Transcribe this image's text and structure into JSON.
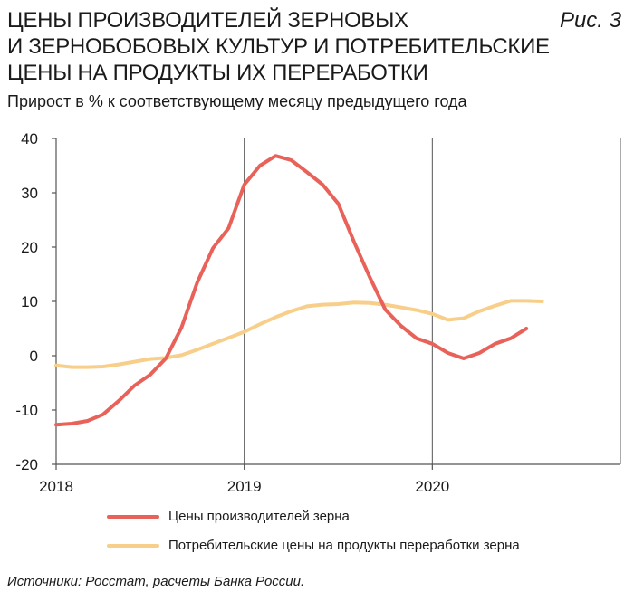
{
  "header": {
    "title_lines": [
      "ЦЕНЫ ПРОИЗВОДИТЕЛЕЙ ЗЕРНОВЫХ",
      "И ЗЕРНОБОБОВЫХ КУЛЬТУР И ПОТРЕБИТЕЛЬСКИЕ",
      "ЦЕНЫ НА ПРОДУКТЫ ИХ ПЕРЕРАБОТКИ"
    ],
    "figure_label": "Рис. 3",
    "subtitle": "Прирост в % к соответствующему месяцу предыдущего года"
  },
  "footer": {
    "source": "Источники: Росстат, расчеты Банка России."
  },
  "chart_data": {
    "type": "line",
    "title": "ЦЕНЫ ПРОИЗВОДИТЕЛЕЙ ЗЕРНОВЫХ И ЗЕРНОБОБОВЫХ КУЛЬТУР И ПОТРЕБИТЕЛЬСКИЕ ЦЕНЫ НА ПРОДУКТЫ ИХ ПЕРЕРАБОТКИ",
    "subtitle": "Прирост в % к соответствующему месяцу предыдущего года",
    "x_ticks": [
      "2018",
      "2019",
      "2020"
    ],
    "y_ticks": [
      "40",
      "30",
      "20",
      "10",
      "0",
      "-10",
      "-20"
    ],
    "xlim": [
      "2018-01",
      "2021-01"
    ],
    "ylim": [
      -20,
      40
    ],
    "grid": "vertical lines at year ticks",
    "legend_position": "bottom",
    "x": [
      "2018-01",
      "2018-02",
      "2018-03",
      "2018-04",
      "2018-05",
      "2018-06",
      "2018-07",
      "2018-08",
      "2018-09",
      "2018-10",
      "2018-11",
      "2018-12",
      "2019-01",
      "2019-02",
      "2019-03",
      "2019-04",
      "2019-05",
      "2019-06",
      "2019-07",
      "2019-08",
      "2019-09",
      "2019-10",
      "2019-11",
      "2019-12",
      "2020-01",
      "2020-02",
      "2020-03",
      "2020-04",
      "2020-05",
      "2020-06",
      "2020-07",
      "2020-08"
    ],
    "series": [
      {
        "name": "Цены производителей зерна",
        "color": "#e8625a",
        "values": [
          -12.7,
          -12.5,
          -12,
          -10.8,
          -8.3,
          -5.5,
          -3.5,
          -0.5,
          5.2,
          13.5,
          19.8,
          23.5,
          31.5,
          35,
          36.8,
          36,
          33.8,
          31.5,
          28,
          21,
          14.5,
          8.5,
          5.5,
          3.2,
          2.2,
          0.5,
          -0.5,
          0.5,
          2.2,
          3.2,
          5,
          null
        ]
      },
      {
        "name": "Потребительские цены на продукты переработки зерна",
        "color": "#f8cf8a",
        "values": [
          -1.8,
          -2.1,
          -2.1,
          -2.0,
          -1.6,
          -1.1,
          -0.6,
          -0.4,
          0.1,
          1.1,
          2.2,
          3.3,
          4.4,
          5.8,
          7.1,
          8.2,
          9.1,
          9.4,
          9.5,
          9.8,
          9.7,
          9.4,
          8.9,
          8.4,
          7.7,
          6.6,
          6.9,
          8.2,
          9.2,
          10.1,
          10.1,
          10.0
        ]
      }
    ]
  }
}
